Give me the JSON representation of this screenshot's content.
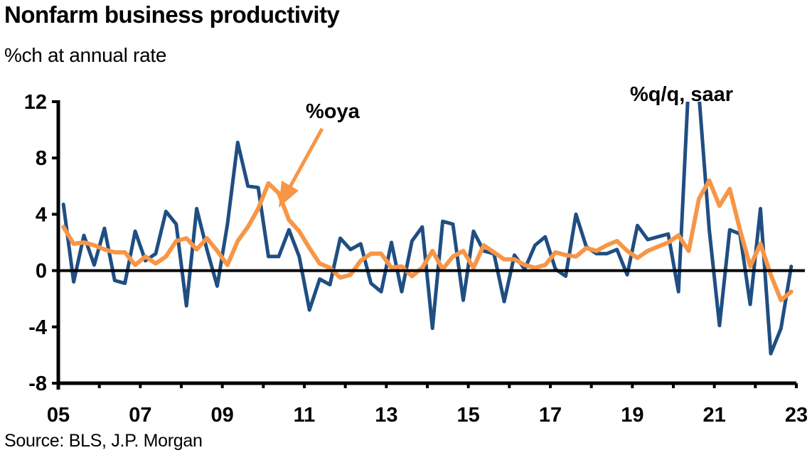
{
  "chart_data": {
    "type": "line",
    "title": "Nonfarm business productivity",
    "subtitle": "%ch at annual rate",
    "source": "Source: BLS, J.P. Morgan",
    "xlabel": "",
    "ylabel": "",
    "ylim": [
      -8,
      12
    ],
    "yticks": [
      12,
      8,
      4,
      0,
      -4,
      -8
    ],
    "ytick_labels": [
      "12",
      "8",
      "4",
      "0",
      "-4",
      "-8"
    ],
    "xlim": [
      2005,
      2023
    ],
    "xticks": [
      2005,
      2007,
      2009,
      2011,
      2013,
      2015,
      2017,
      2019,
      2021,
      2023
    ],
    "xtick_labels": [
      "05",
      "07",
      "09",
      "11",
      "13",
      "15",
      "17",
      "19",
      "21",
      "23"
    ],
    "x_minor_tick_step_years": 1,
    "grid": false,
    "zero_line": true,
    "x_start": 2005.125,
    "x_step": 0.25,
    "series": [
      {
        "name": "%q/q, saar",
        "color": "#1f4e82",
        "values": [
          4.7,
          -0.8,
          2.5,
          0.4,
          3.0,
          -0.7,
          -0.9,
          2.8,
          0.7,
          1.2,
          4.2,
          3.3,
          -2.5,
          4.4,
          1.5,
          -1.1,
          3.3,
          9.1,
          6.0,
          5.9,
          1.0,
          1.0,
          2.9,
          1.0,
          -2.8,
          -0.6,
          -1.0,
          2.3,
          1.5,
          1.9,
          -0.9,
          -1.5,
          2.0,
          -1.5,
          2.1,
          3.1,
          -4.1,
          3.5,
          3.3,
          -2.1,
          2.8,
          1.4,
          1.2,
          -2.2,
          1.1,
          0.1,
          1.8,
          2.4,
          0.1,
          -0.4,
          4.0,
          1.7,
          1.2,
          1.2,
          1.5,
          -0.3,
          3.2,
          2.2,
          2.4,
          2.6,
          -1.5,
          13.5,
          12.5,
          2.9,
          -3.9,
          2.9,
          2.6,
          -2.4,
          4.4,
          -5.9,
          -4.1,
          0.3
        ]
      },
      {
        "name": "%oya",
        "color": "#f79646",
        "values": [
          3.1,
          1.9,
          2.0,
          1.8,
          1.5,
          1.3,
          1.3,
          0.4,
          1.0,
          0.5,
          1.0,
          2.1,
          2.3,
          1.5,
          2.3,
          1.4,
          0.4,
          2.1,
          3.1,
          4.4,
          6.2,
          5.5,
          3.6,
          2.8,
          1.6,
          0.5,
          0.2,
          -0.5,
          -0.3,
          0.7,
          1.2,
          1.2,
          0.2,
          0.3,
          -0.4,
          0.2,
          1.4,
          0.1,
          1.0,
          1.4,
          0.2,
          1.8,
          1.3,
          0.8,
          0.8,
          0.4,
          0.2,
          0.4,
          1.3,
          1.1,
          1.0,
          1.6,
          1.4,
          1.8,
          2.1,
          1.4,
          0.9,
          1.4,
          1.7,
          2.0,
          2.5,
          1.4,
          5.1,
          6.4,
          4.6,
          5.8,
          2.9,
          0.3,
          1.9,
          -0.3,
          -2.1,
          -1.5
        ]
      }
    ],
    "annotations": [
      {
        "text": "%oya",
        "series": "%oya",
        "arrow": true
      },
      {
        "text": "%q/q, saar",
        "series": "%q/q, saar",
        "arrow": false
      }
    ]
  }
}
